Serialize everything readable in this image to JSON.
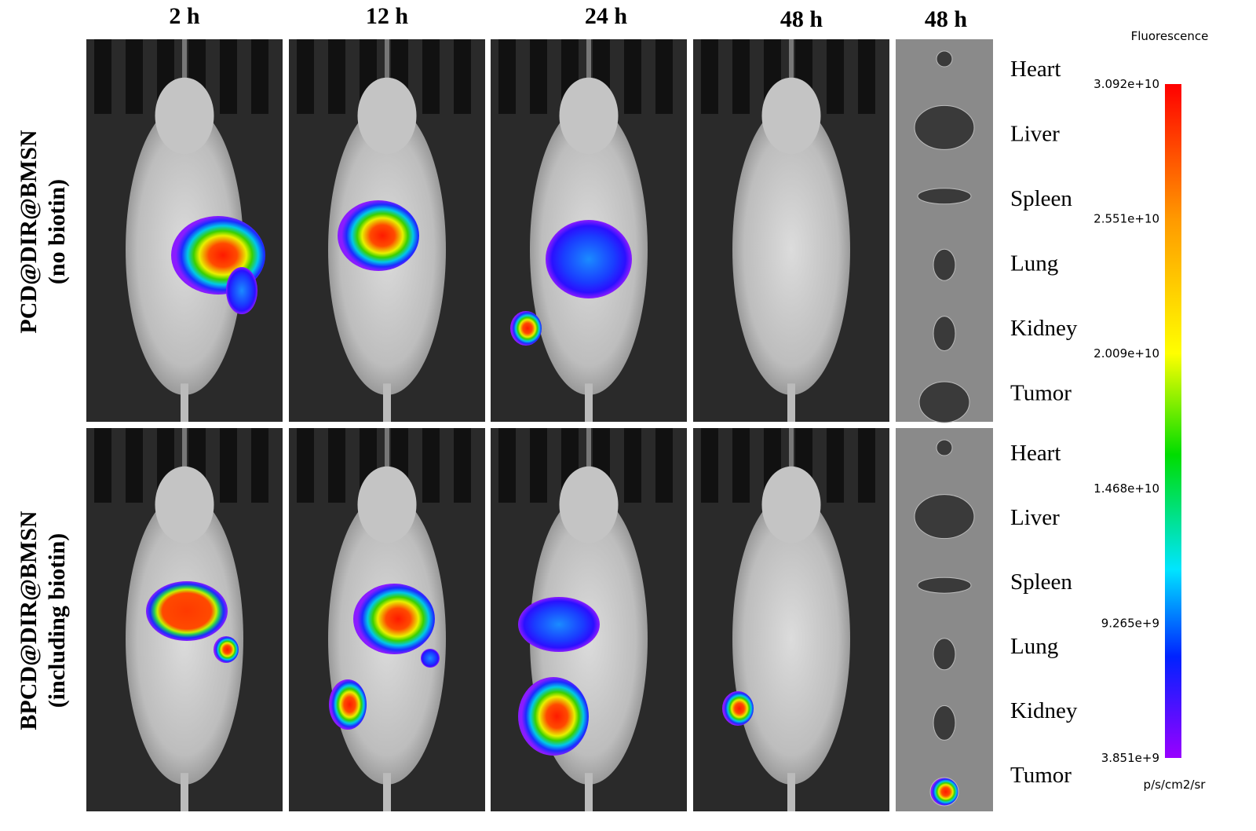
{
  "columns": [
    "2 h",
    "12 h",
    "24 h",
    "48 h",
    "48 h"
  ],
  "rows": [
    {
      "label": "PCD@DIR@BMSN",
      "sublabel": "(no biotin)"
    },
    {
      "label": "BPCD@DIR@BMSN",
      "sublabel": "(including biotin)"
    }
  ],
  "organs_top": [
    "Heart",
    "Liver",
    "Spleen",
    "Lung",
    "Kidney",
    "Tumor"
  ],
  "organs_bottom": [
    "Heart",
    "Liver",
    "Spleen",
    "Lung",
    "Kidney",
    "Tumor"
  ],
  "colorbar": {
    "title": "Fluorescence",
    "ticks": [
      "3.092e+10",
      "2.551e+10",
      "2.009e+10",
      "1.468e+10",
      "9.265e+9",
      "3.851e+9"
    ],
    "unit": "p/s/cm2/sr"
  }
}
